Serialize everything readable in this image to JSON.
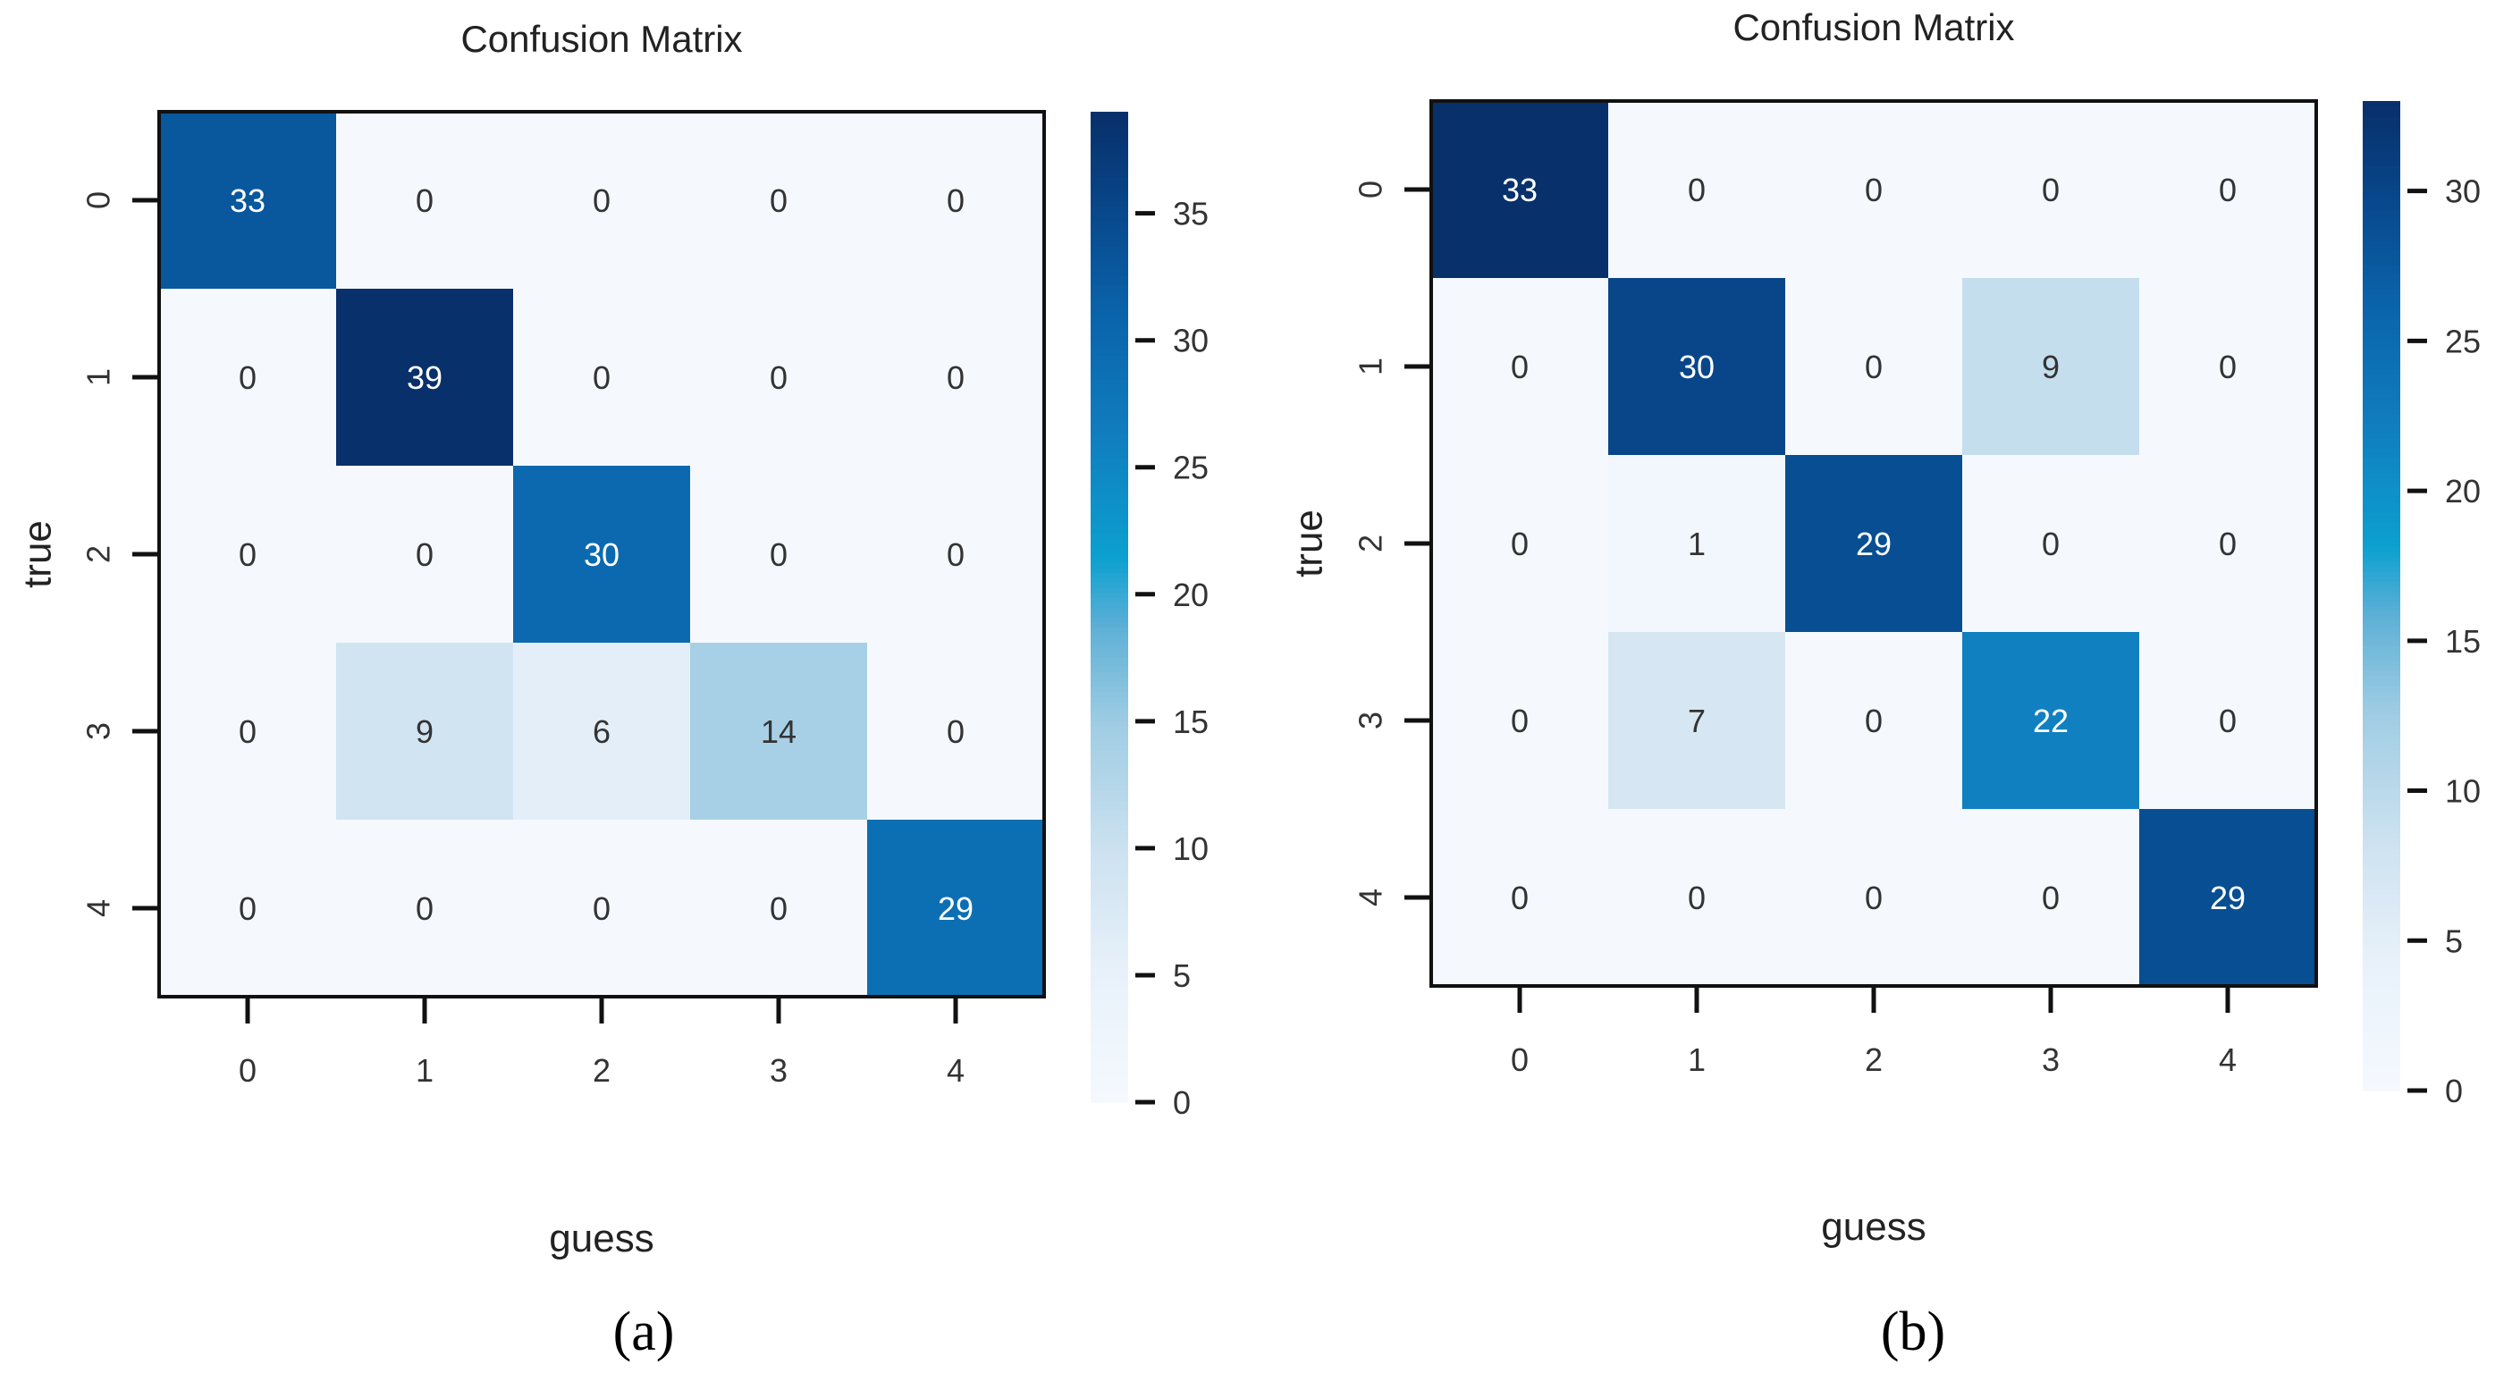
{
  "chart_data": [
    {
      "type": "heatmap",
      "title": "Confusion Matrix",
      "xlabel": "guess",
      "ylabel": "true",
      "x_tick_labels": [
        "0",
        "1",
        "2",
        "3",
        "4"
      ],
      "y_tick_labels": [
        "0",
        "1",
        "2",
        "3",
        "4"
      ],
      "values": [
        [
          33,
          0,
          0,
          0,
          0
        ],
        [
          0,
          39,
          0,
          0,
          0
        ],
        [
          0,
          0,
          30,
          0,
          0
        ],
        [
          0,
          9,
          6,
          14,
          0
        ],
        [
          0,
          0,
          0,
          0,
          29
        ]
      ],
      "colormap": "Blues",
      "color_range": [
        0,
        39
      ],
      "colorbar_ticks": [
        0,
        5,
        10,
        15,
        20,
        25,
        30,
        35
      ],
      "colorbar_tick_labels": [
        "0",
        "5",
        "10",
        "15",
        "20",
        "25",
        "30",
        "35"
      ],
      "panel_label": "(a)"
    },
    {
      "type": "heatmap",
      "title": "Confusion Matrix",
      "xlabel": "guess",
      "ylabel": "true",
      "x_tick_labels": [
        "0",
        "1",
        "2",
        "3",
        "4"
      ],
      "y_tick_labels": [
        "0",
        "1",
        "2",
        "3",
        "4"
      ],
      "values": [
        [
          33,
          0,
          0,
          0,
          0
        ],
        [
          0,
          30,
          0,
          9,
          0
        ],
        [
          0,
          1,
          29,
          0,
          0
        ],
        [
          0,
          7,
          0,
          22,
          0
        ],
        [
          0,
          0,
          0,
          0,
          29
        ]
      ],
      "colormap": "Blues",
      "color_range": [
        0,
        33
      ],
      "colorbar_ticks": [
        0,
        5,
        10,
        15,
        20,
        25,
        30
      ],
      "colorbar_tick_labels": [
        "0",
        "5",
        "10",
        "15",
        "20",
        "25",
        "30"
      ],
      "panel_label": "(b)"
    }
  ]
}
